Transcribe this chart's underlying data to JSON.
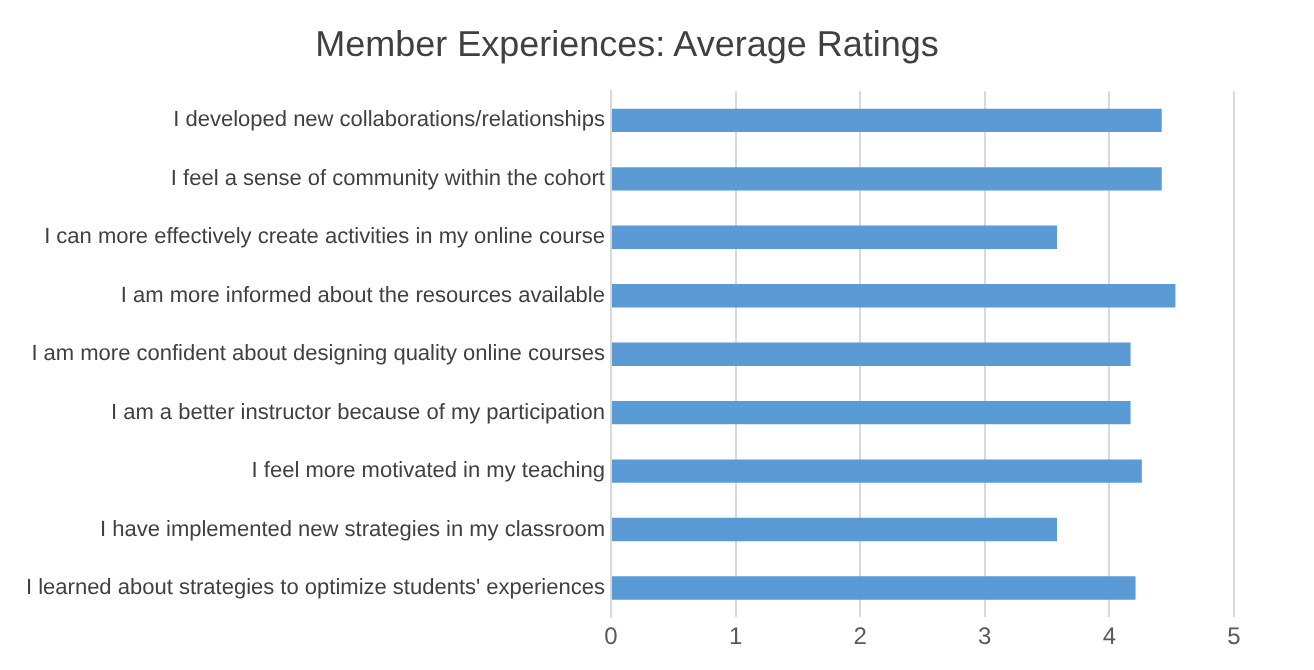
{
  "chart_data": {
    "type": "bar",
    "orientation": "horizontal",
    "title": "Member Experiences: Average Ratings",
    "categories": [
      "I developed new collaborations/relationships",
      "I feel a sense of community within the cohort",
      "I can more effectively create activities in my online course",
      "I am more informed about the resources available",
      "I am more confident about designing quality online courses",
      "I am a better instructor because of my participation",
      "I feel more motivated in my teaching",
      "I have implemented new strategies in my classroom",
      "I learned about strategies to optimize students' experiences"
    ],
    "values": [
      4.42,
      4.42,
      3.58,
      4.53,
      4.17,
      4.17,
      4.26,
      3.58,
      4.21
    ],
    "color": "#5b9bd5",
    "xlim": [
      0,
      5
    ],
    "xticks": [
      0,
      1,
      2,
      3,
      4,
      5
    ],
    "grid": "x",
    "legend": false
  }
}
